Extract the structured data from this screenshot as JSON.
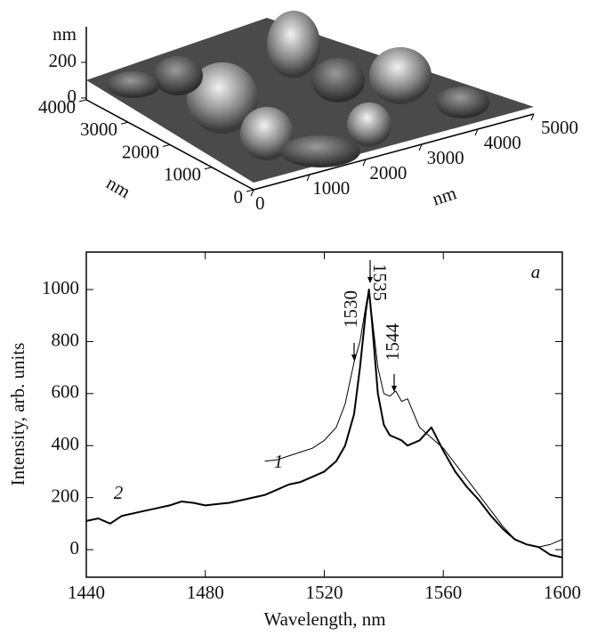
{
  "chart_data": [
    {
      "type": "surface3d",
      "xlabel": "nm",
      "ylabel": "nm",
      "zlabel": "nm",
      "xticks": [
        0,
        1000,
        2000,
        3000,
        4000,
        5000
      ],
      "yticks": [
        0,
        1000,
        2000,
        3000,
        4000
      ],
      "zticks": [
        0,
        200
      ]
    },
    {
      "type": "line",
      "xlabel": "Wavelength, nm",
      "ylabel": "Intensity, arb. units",
      "xlim": [
        1440,
        1600
      ],
      "xticks": [
        1440,
        1480,
        1520,
        1560,
        1600
      ],
      "ylim": [
        -106,
        1144
      ],
      "yticks": [
        0,
        200,
        400,
        600,
        800,
        1000
      ],
      "annotations": [
        "1530",
        "1535",
        "1544",
        "a"
      ],
      "x": [
        1440,
        1444,
        1448,
        1452,
        1456,
        1460,
        1464,
        1468,
        1472,
        1476,
        1480,
        1484,
        1488,
        1492,
        1496,
        1500,
        1504,
        1508,
        1512,
        1516,
        1520,
        1524,
        1527,
        1530,
        1532,
        1534,
        1535,
        1536,
        1538,
        1540,
        1542,
        1544,
        1546,
        1548,
        1552,
        1556,
        1560,
        1564,
        1568,
        1572,
        1576,
        1580,
        1584,
        1588,
        1592,
        1596,
        1600
      ],
      "series": [
        {
          "name": "1",
          "color": "#000000",
          "values": [
            null,
            null,
            null,
            null,
            null,
            null,
            null,
            null,
            null,
            null,
            null,
            null,
            null,
            null,
            null,
            340,
            345,
            360,
            375,
            390,
            420,
            470,
            560,
            720,
            800,
            940,
            1000,
            900,
            700,
            600,
            590,
            610,
            570,
            580,
            470,
            430,
            390,
            330,
            270,
            210,
            150,
            90,
            40,
            20,
            10,
            20,
            40
          ]
        },
        {
          "name": "2",
          "color": "#000000",
          "values": [
            110,
            120,
            100,
            130,
            140,
            150,
            160,
            170,
            185,
            180,
            170,
            175,
            180,
            190,
            200,
            210,
            230,
            250,
            260,
            280,
            300,
            340,
            400,
            520,
            700,
            920,
            1000,
            880,
            600,
            480,
            440,
            430,
            420,
            400,
            420,
            470,
            380,
            300,
            240,
            190,
            130,
            80,
            40,
            20,
            10,
            -20,
            -30
          ]
        }
      ]
    }
  ]
}
